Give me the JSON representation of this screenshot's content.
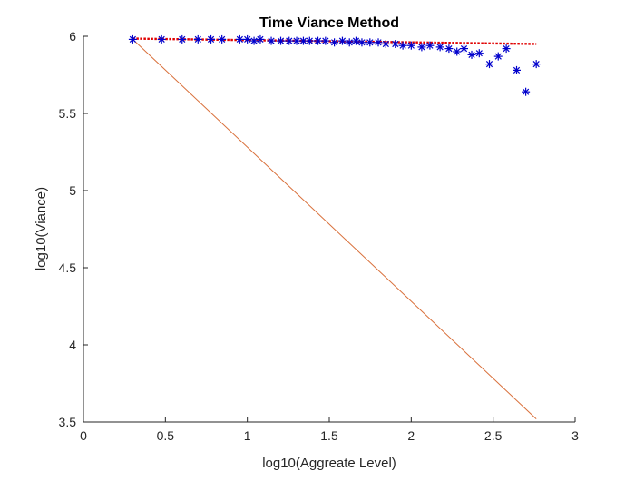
{
  "chart_data": {
    "type": "scatter",
    "title": "Time Viance Method",
    "xlabel": "log10(Aggreate Level)",
    "ylabel": "log10(Viance)",
    "xlim": [
      0,
      3
    ],
    "ylim": [
      3.5,
      6
    ],
    "xticks": [
      "0",
      "0.5",
      "1",
      "1.5",
      "2",
      "2.5",
      "3"
    ],
    "yticks": [
      "3.5",
      "4",
      "4.5",
      "5",
      "5.5",
      "6"
    ],
    "grid": false,
    "series": [
      {
        "kind": "scatter",
        "marker": "asterisk",
        "color": "#0000cc",
        "points": [
          [
            0.301,
            5.98
          ],
          [
            0.477,
            5.98
          ],
          [
            0.602,
            5.98
          ],
          [
            0.699,
            5.98
          ],
          [
            0.778,
            5.98
          ],
          [
            0.845,
            5.98
          ],
          [
            0.954,
            5.98
          ],
          [
            1.0,
            5.98
          ],
          [
            1.041,
            5.97
          ],
          [
            1.079,
            5.98
          ],
          [
            1.146,
            5.97
          ],
          [
            1.204,
            5.97
          ],
          [
            1.255,
            5.97
          ],
          [
            1.301,
            5.97
          ],
          [
            1.342,
            5.97
          ],
          [
            1.38,
            5.97
          ],
          [
            1.431,
            5.97
          ],
          [
            1.477,
            5.97
          ],
          [
            1.531,
            5.96
          ],
          [
            1.58,
            5.97
          ],
          [
            1.623,
            5.96
          ],
          [
            1.663,
            5.97
          ],
          [
            1.699,
            5.96
          ],
          [
            1.748,
            5.96
          ],
          [
            1.799,
            5.96
          ],
          [
            1.845,
            5.95
          ],
          [
            1.903,
            5.95
          ],
          [
            1.949,
            5.94
          ],
          [
            2.0,
            5.94
          ],
          [
            2.064,
            5.93
          ],
          [
            2.114,
            5.94
          ],
          [
            2.176,
            5.93
          ],
          [
            2.23,
            5.92
          ],
          [
            2.279,
            5.9
          ],
          [
            2.322,
            5.92
          ],
          [
            2.369,
            5.88
          ],
          [
            2.415,
            5.89
          ],
          [
            2.477,
            5.82
          ],
          [
            2.531,
            5.87
          ],
          [
            2.58,
            5.92
          ],
          [
            2.643,
            5.78
          ],
          [
            2.699,
            5.64
          ],
          [
            2.763,
            5.82
          ]
        ]
      },
      {
        "kind": "line",
        "style": "dotted",
        "color": "#e00000",
        "x": [
          0.301,
          2.763
        ],
        "y": [
          5.985,
          5.95
        ]
      },
      {
        "kind": "line",
        "style": "solid",
        "color": "#d9703b",
        "x": [
          0.301,
          2.763
        ],
        "y": [
          5.98,
          3.52
        ]
      }
    ]
  }
}
